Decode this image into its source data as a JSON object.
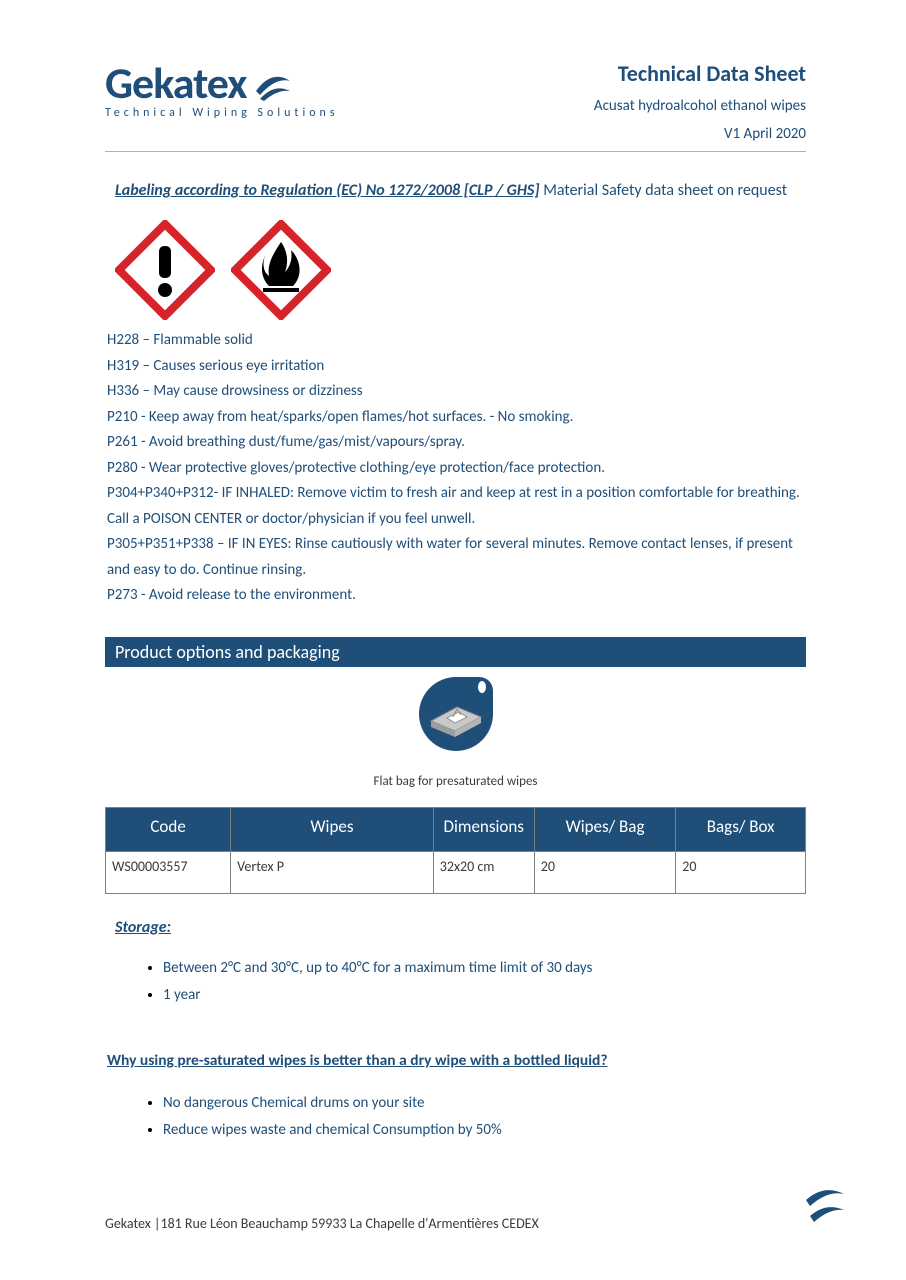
{
  "header": {
    "logo_text": "Gekatex",
    "logo_tagline": "Technical Wiping Solutions",
    "tds_title": "Technical Data Sheet",
    "product_name": "Acusat hydroalcohol ethanol wipes",
    "version": "V1 April 2020"
  },
  "labeling": {
    "reg_line": "Labeling according to Regulation (EC) No 1272/2008 [CLP / GHS]",
    "msds_note": "  Material Safety data sheet on request",
    "pictograms": [
      {
        "name": "exclamation",
        "border_color": "#d7232a",
        "fg": "#000000"
      },
      {
        "name": "flame",
        "border_color": "#d7232a",
        "fg": "#000000"
      }
    ],
    "statements": [
      "H228 – Flammable solid",
      "H319 – Causes serious eye irritation",
      "H336 – May cause drowsiness or dizziness",
      "P210 - Keep away from heat/sparks/open flames/hot surfaces. - No smoking.",
      "P261 - Avoid breathing dust/fume/gas/mist/vapours/spray.",
      "P280 - Wear protective gloves/protective clothing/eye protection/face protection.",
      "P304+P340+P312- IF INHALED: Remove victim to fresh air and keep at rest in a position comfortable for breathing. Call a POISON CENTER or doctor/physician if you feel unwell.",
      "P305+P351+P338 – IF IN EYES: Rinse cautiously with water for several minutes. Remove contact lenses, if present and easy to do. Continue rinsing.",
      "P273 - Avoid release to the environment."
    ]
  },
  "section_bar": "Product options and packaging",
  "icon_caption": "Flat bag for presaturated wipes",
  "product_table": {
    "columns": [
      "Code",
      "Wipes",
      "Dimensions",
      "Wipes/ Bag",
      "Bags/ Box"
    ],
    "col_widths": [
      "130px",
      "222px",
      "102px",
      "152px",
      "140px"
    ],
    "rows": [
      [
        "WS00003557",
        "Vertex P",
        "32x20 cm",
        "20",
        "20"
      ]
    ],
    "header_bg": "#1f4e79",
    "header_fg": "#ffffff",
    "border_color": "#7f7f7f"
  },
  "storage": {
    "heading": "Storage:",
    "items": [
      "Between 2°C and 30°C, up to 40°C for a maximum time limit of 30 days",
      "1 year"
    ]
  },
  "why": {
    "heading": "Why using pre-saturated wipes is better than a dry wipe with a bottled liquid?",
    "items": [
      "No dangerous Chemical drums on your site",
      "Reduce wipes waste and chemical Consumption by 50%"
    ]
  },
  "footer": {
    "address": "Gekatex |181 Rue Léon Beauchamp 59933 La Chapelle d'Armentières CEDEX"
  },
  "colors": {
    "brand": "#1f4e79",
    "hazard_red": "#d7232a",
    "text_dark": "#3a3a3a",
    "bg": "#ffffff"
  }
}
